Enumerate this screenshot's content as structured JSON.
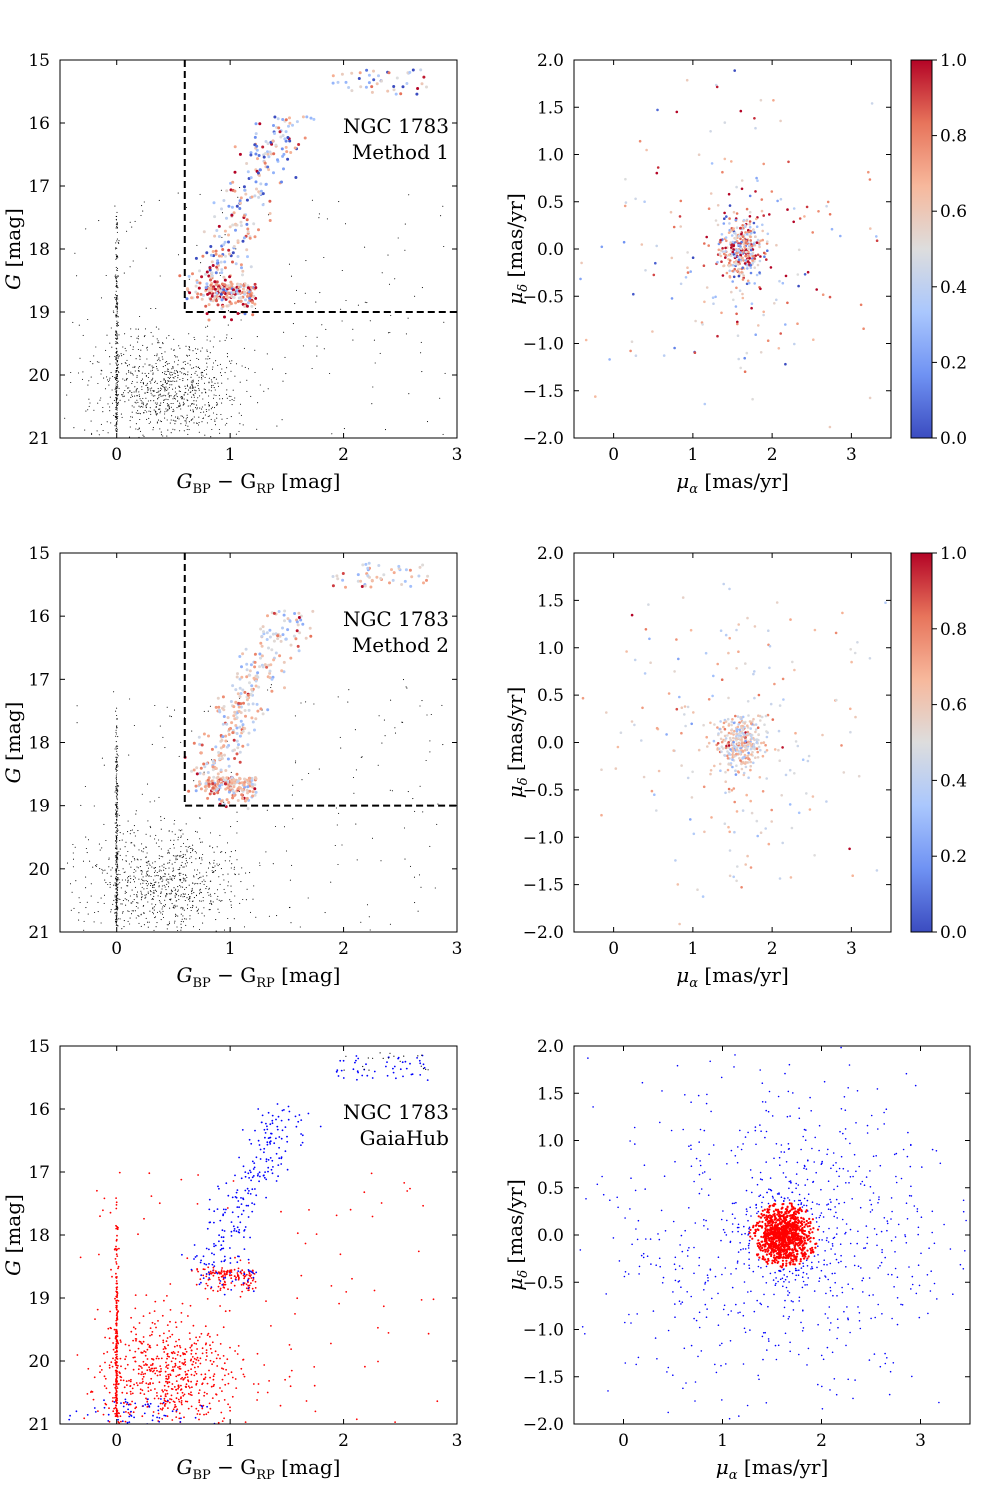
{
  "colorbar": {
    "ticks": [
      "0.0",
      "0.2",
      "0.4",
      "0.6",
      "0.8",
      "1.0"
    ],
    "cmap": [
      "#3b4cc0",
      "#6f92f3",
      "#aac7fd",
      "#dddddd",
      "#f7b89c",
      "#e7745b",
      "#b40426"
    ]
  },
  "chart_data": [
    {
      "id": "cmd-method1",
      "type": "scatter",
      "xlabel_main": "G",
      "xlabel_sub1": "BP",
      "xlabel_minus": " − G",
      "xlabel_sub2": "RP",
      "xlabel_unit": " [mag]",
      "ylabel_var": "G",
      "ylabel_unit": " [mag]",
      "xlim": [
        -0.5,
        3
      ],
      "ylim": [
        21,
        15
      ],
      "xticks": [
        0,
        1,
        2,
        3
      ],
      "yticks": [
        15,
        16,
        17,
        18,
        19,
        20,
        21
      ],
      "annotation": [
        "NGC 1783",
        "Method 1"
      ],
      "cut_box": {
        "x": 0.6,
        "y": 19
      },
      "color_mode": "prob"
    },
    {
      "id": "pm-method1",
      "type": "scatter",
      "xlabel_var": "μ",
      "xlabel_sub": "α",
      "xlabel_unit": " [mas/yr]",
      "ylabel_var": "μ",
      "ylabel_sub": "δ",
      "ylabel_unit": " [mas/yr]",
      "xlim": [
        -0.5,
        3.5
      ],
      "ylim": [
        -2,
        2
      ],
      "xticks": [
        0,
        1,
        2,
        3
      ],
      "yticks": [
        -2.0,
        -1.5,
        -1.0,
        -0.5,
        0.0,
        0.5,
        1.0,
        1.5,
        2.0
      ],
      "color_mode": "prob",
      "colorbar": true
    },
    {
      "id": "cmd-method2",
      "type": "scatter",
      "xlabel_main": "G",
      "xlabel_sub1": "BP",
      "xlabel_minus": " − G",
      "xlabel_sub2": "RP",
      "xlabel_unit": " [mag]",
      "ylabel_var": "G",
      "ylabel_unit": " [mag]",
      "xlim": [
        -0.5,
        3
      ],
      "ylim": [
        21,
        15
      ],
      "xticks": [
        0,
        1,
        2,
        3
      ],
      "yticks": [
        15,
        16,
        17,
        18,
        19,
        20,
        21
      ],
      "annotation": [
        "NGC 1783",
        "Method 2"
      ],
      "cut_box": {
        "x": 0.6,
        "y": 19
      },
      "color_mode": "prob2"
    },
    {
      "id": "pm-method2",
      "type": "scatter",
      "xlabel_var": "μ",
      "xlabel_sub": "α",
      "xlabel_unit": " [mas/yr]",
      "ylabel_var": "μ",
      "ylabel_sub": "δ",
      "ylabel_unit": " [mas/yr]",
      "xlim": [
        -0.5,
        3.5
      ],
      "ylim": [
        -2,
        2
      ],
      "xticks": [
        0,
        1,
        2,
        3
      ],
      "yticks": [
        -2.0,
        -1.5,
        -1.0,
        -0.5,
        0.0,
        0.5,
        1.0,
        1.5,
        2.0
      ],
      "color_mode": "prob2",
      "colorbar": true
    },
    {
      "id": "cmd-gaiahub",
      "type": "scatter",
      "xlabel_main": "G",
      "xlabel_sub1": "BP",
      "xlabel_minus": " − G",
      "xlabel_sub2": "RP",
      "xlabel_unit": " [mag]",
      "ylabel_var": "G",
      "ylabel_unit": " [mag]",
      "xlim": [
        -0.5,
        3
      ],
      "ylim": [
        21,
        15
      ],
      "xticks": [
        0,
        1,
        2,
        3
      ],
      "yticks": [
        15,
        16,
        17,
        18,
        19,
        20,
        21
      ],
      "annotation": [
        "NGC 1783",
        "GaiaHub"
      ],
      "color_mode": "binary",
      "colors": {
        "member": "#ff0000",
        "field": "#0000ff"
      }
    },
    {
      "id": "pm-gaiahub",
      "type": "scatter",
      "xlabel_var": "μ",
      "xlabel_sub": "α",
      "xlabel_unit": " [mas/yr]",
      "ylabel_var": "μ",
      "ylabel_sub": "δ",
      "ylabel_unit": " [mas/yr]",
      "xlim": [
        -0.5,
        3.5
      ],
      "ylim": [
        -2,
        2
      ],
      "xticks": [
        0,
        1,
        2,
        3
      ],
      "yticks": [
        -2.0,
        -1.5,
        -1.0,
        -0.5,
        0.0,
        0.5,
        1.0,
        1.5,
        2.0
      ],
      "color_mode": "binary",
      "colors": {
        "member": "#ff0000",
        "field": "#0000ff"
      }
    }
  ]
}
